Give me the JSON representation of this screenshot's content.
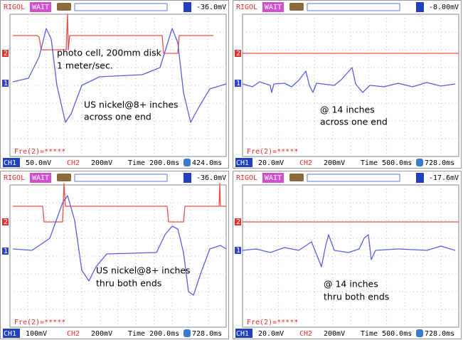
{
  "panels": [
    {
      "header": {
        "brand": "RIGOL",
        "status": "WAIT",
        "trigger": "-36.0mV"
      },
      "markers": {
        "ch2": "2",
        "ch1": "1"
      },
      "annotations": [
        "photo cell, 200mm disk",
        "1 meter/sec.",
        "US nickel@8+ inches",
        "across one end"
      ],
      "freq": "Fre(2)=*****",
      "footer": {
        "ch1": "CH1",
        "ch1_scale": "50.0mV",
        "ch2": "CH2",
        "ch2_scale": "200mV",
        "time": "Time 200.0ms",
        "offset": "424.0ms"
      }
    },
    {
      "header": {
        "brand": "RIGOL",
        "status": "WAIT",
        "trigger": "-8.00mV"
      },
      "markers": {
        "ch2": "2",
        "ch1": "1"
      },
      "annotations": [
        "@ 14 inches",
        "across one end"
      ],
      "freq": "Fre(2)=*****",
      "footer": {
        "ch1": "CH1",
        "ch1_scale": "20.0mV",
        "ch2": "CH2",
        "ch2_scale": "200mV",
        "time": "Time 500.0ms",
        "offset": "728.0ms"
      }
    },
    {
      "header": {
        "brand": "RIGOL",
        "status": "WAIT",
        "trigger": "-36.0mV"
      },
      "markers": {
        "ch2": "2",
        "ch1": "1"
      },
      "annotations": [
        "US nickel@8+ inches",
        "thru both ends"
      ],
      "freq": "Fre(2)=*****",
      "footer": {
        "ch1": "CH1",
        "ch1_scale": "100mV",
        "ch2": "CH2",
        "ch2_scale": "200mV",
        "time": "Time 200.0ms",
        "offset": "728.0ms"
      }
    },
    {
      "header": {
        "brand": "RIGOL",
        "status": "WAIT",
        "trigger": "-17.6mV"
      },
      "markers": {
        "ch2": "2",
        "ch1": "1"
      },
      "annotations": [
        "@ 14 inches",
        "thru both ends"
      ],
      "freq": "Fre(2)=*****",
      "footer": {
        "ch1": "CH1",
        "ch1_scale": "20.0mV",
        "ch2": "CH2",
        "ch2_scale": "200mV",
        "time": "Time 500.0ms",
        "offset": "728.0ms"
      }
    }
  ]
}
